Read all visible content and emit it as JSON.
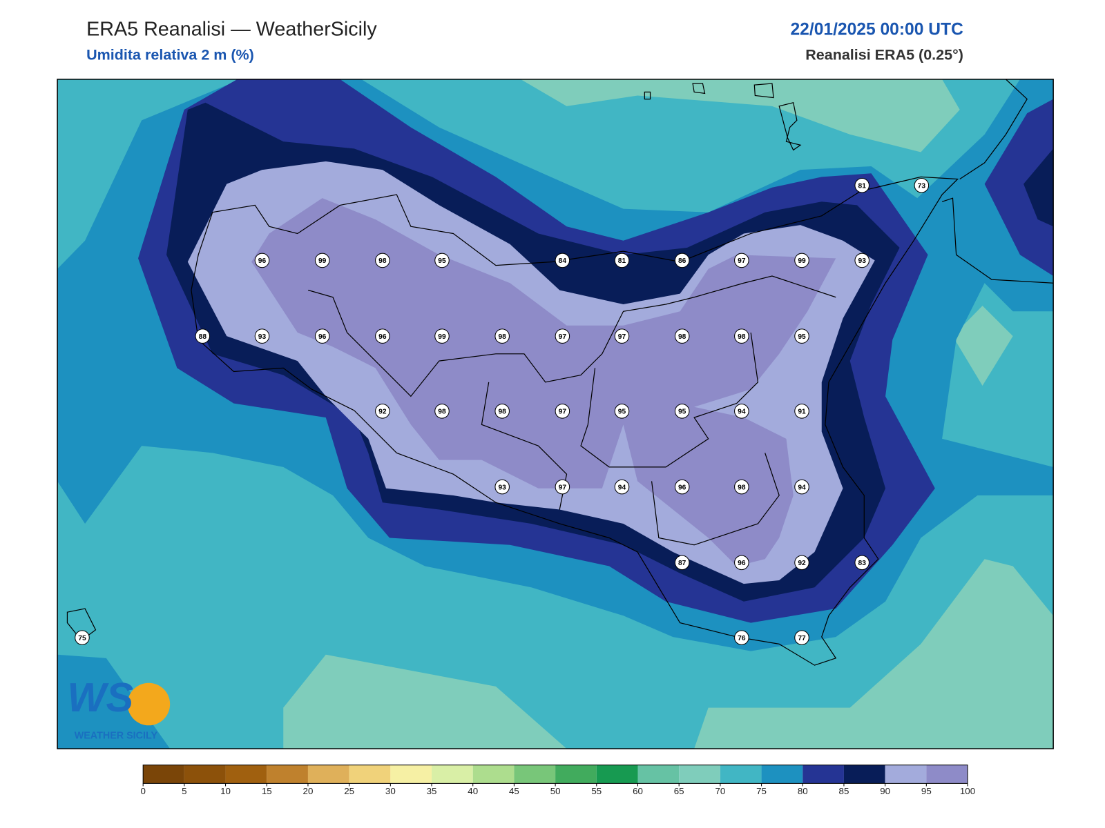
{
  "header": {
    "title": "ERA5 Reanalisi — WeatherSicily",
    "subtitle": "Umidita relativa 2 m (%)",
    "datetime": "22/01/2025 00:00 UTC",
    "source": "Reanalisi ERA5 (0.25°)"
  },
  "logo": {
    "mark": "WS",
    "text": "WEATHER SICILY"
  },
  "stations": [
    81,
    73,
    96,
    99,
    98,
    95,
    84,
    81,
    86,
    97,
    99,
    93,
    88,
    93,
    96,
    96,
    99,
    98,
    97,
    97,
    98,
    98,
    95,
    92,
    98,
    98,
    97,
    95,
    95,
    94,
    91,
    93,
    97,
    94,
    96,
    98,
    94,
    87,
    96,
    92,
    83,
    75,
    76,
    77
  ],
  "colorbar": {
    "ticks": [
      0,
      5,
      10,
      15,
      20,
      25,
      30,
      35,
      40,
      45,
      50,
      55,
      60,
      65,
      70,
      75,
      80,
      85,
      90,
      95,
      100
    ],
    "colors": [
      "#7a4508",
      "#8c510a",
      "#a0600f",
      "#bf812d",
      "#dfb05a",
      "#f0d27a",
      "#f6f0a4",
      "#d9efa6",
      "#addd8e",
      "#78c679",
      "#41ab5d",
      "#179a51",
      "#66c2a4",
      "#7fcdbb",
      "#41b6c4",
      "#1d91c0",
      "#253494",
      "#081d58",
      "#a3abdc",
      "#8e8bc8"
    ]
  }
}
